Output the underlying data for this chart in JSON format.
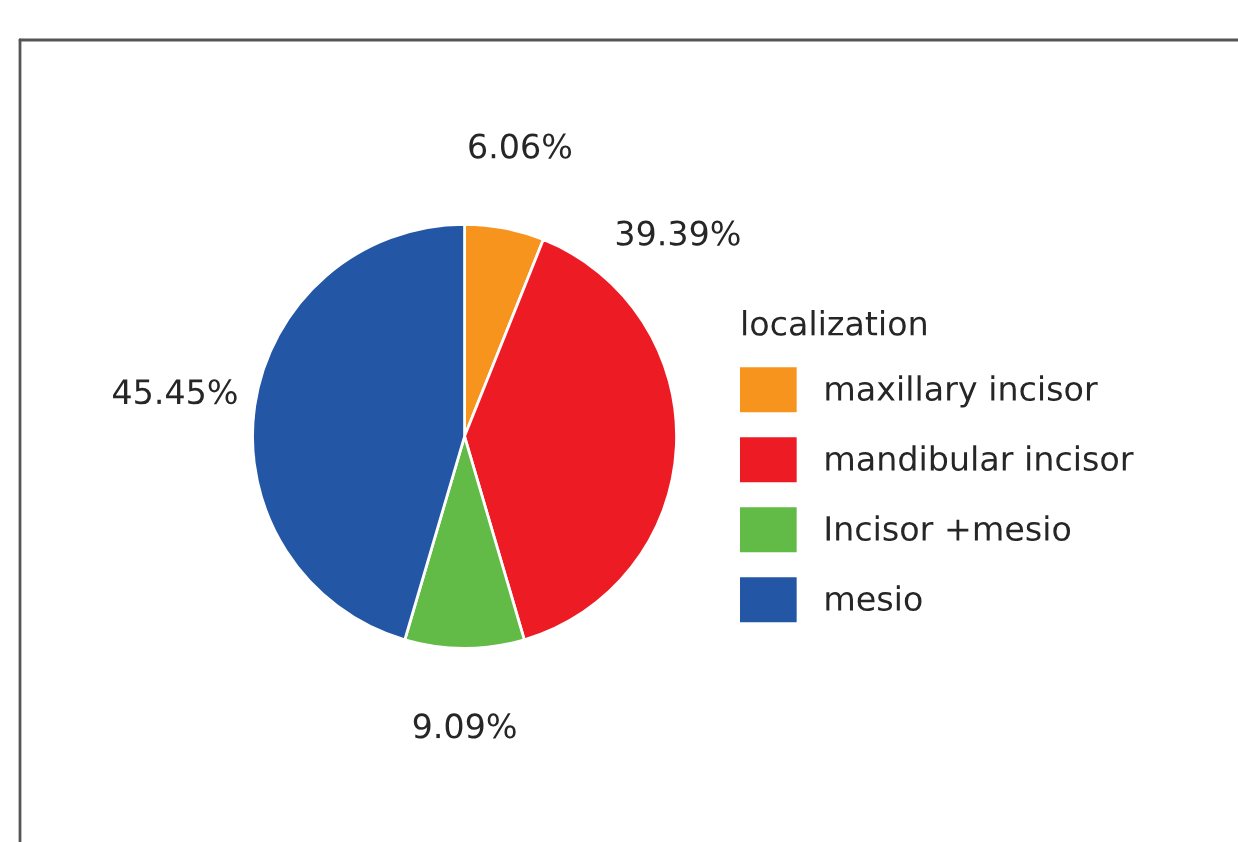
{
  "chart_data": {
    "type": "pie",
    "categories": [
      "maxillary incisor",
      "mandibular incisor",
      "Incisor +mesio",
      "mesio"
    ],
    "values": [
      6.06,
      39.39,
      9.09,
      45.45
    ],
    "value_labels": [
      "6.06%",
      "39.39%",
      "9.09%",
      "45.45%"
    ],
    "colors": [
      "#f7941d",
      "#ed1c24",
      "#62bb46",
      "#2357a6"
    ],
    "legend_title": "localization",
    "legend": "right"
  }
}
